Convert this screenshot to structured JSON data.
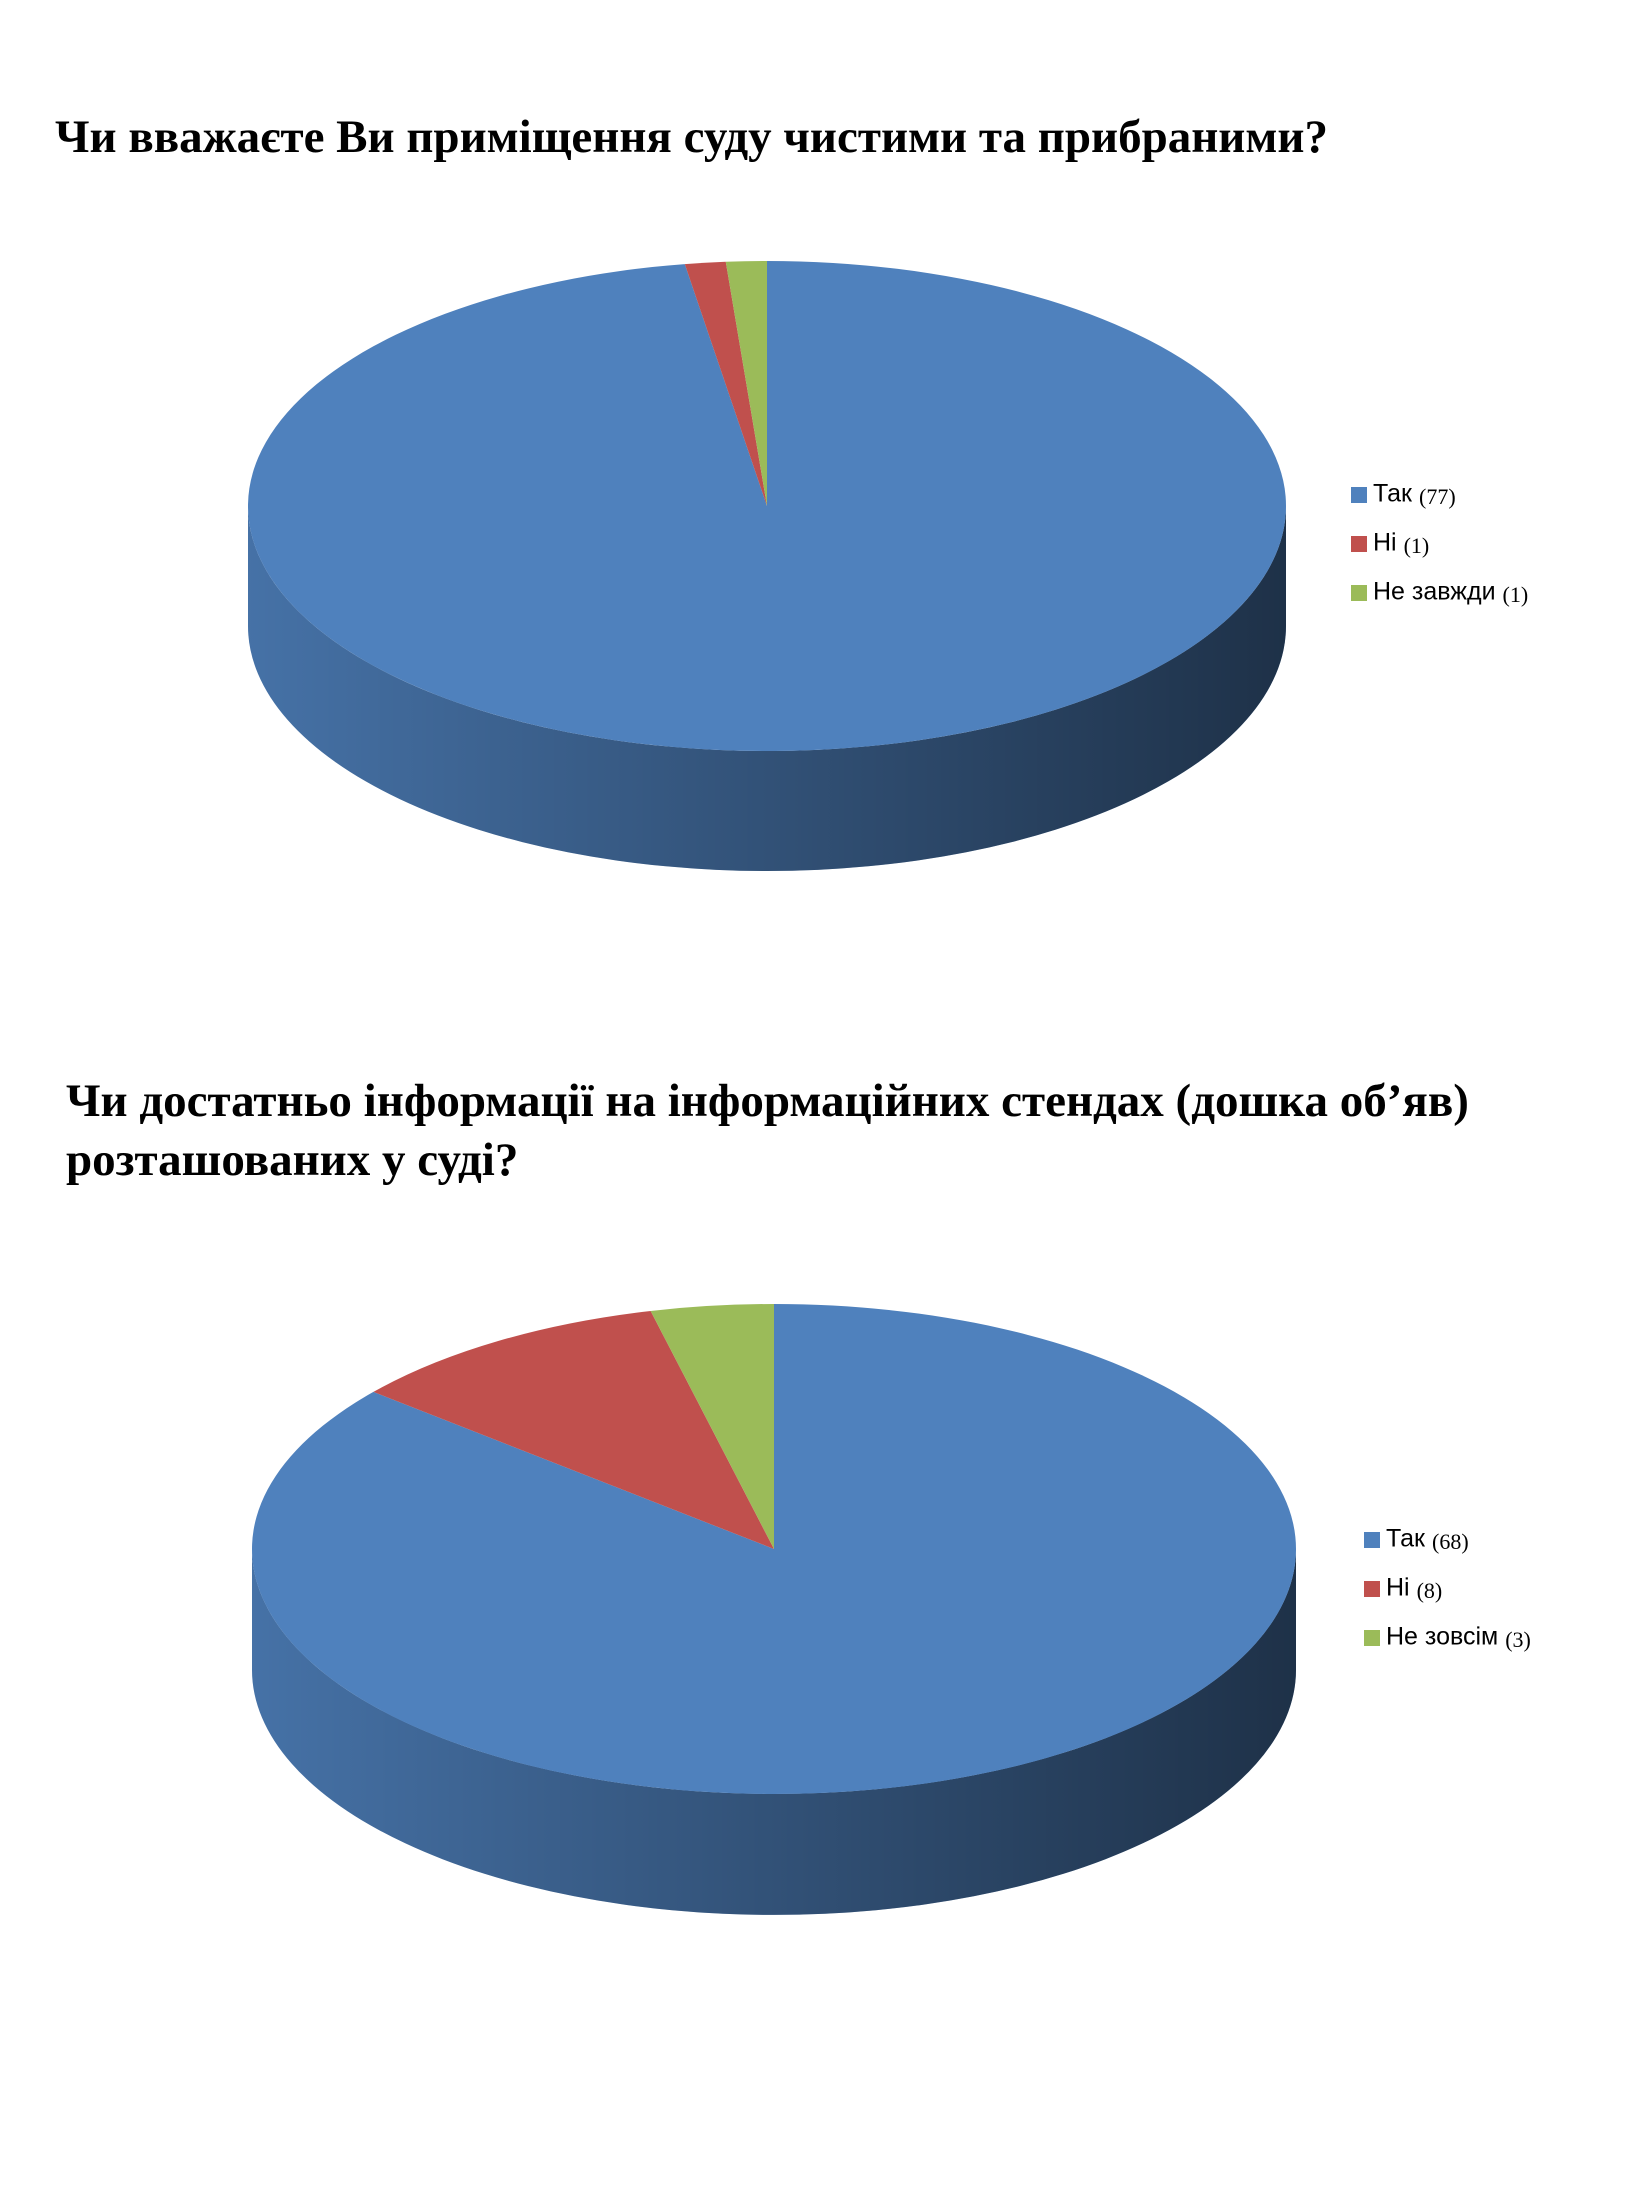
{
  "chart_data": [
    {
      "type": "pie",
      "title": "Чи вважаєте Ви приміщення суду чистими та прибраними?",
      "categories": [
        "Так",
        "Ні",
        "Не завжди"
      ],
      "values": [
        77,
        1,
        1
      ],
      "value_labels": [
        "(77)",
        "(1)",
        "(1)"
      ],
      "colors": [
        "#4f81bd",
        "#c0504d",
        "#9bbb59"
      ]
    },
    {
      "type": "pie",
      "title": "Чи достатньо інформації на інформаційних стендах (дошка об’яв) розташованих у суді?",
      "categories": [
        "Так",
        "Ні",
        "Не зовсім"
      ],
      "values": [
        68,
        8,
        3
      ],
      "value_labels": [
        "(68)",
        "(8)",
        "(3)"
      ],
      "colors": [
        "#4f81bd",
        "#c0504d",
        "#9bbb59"
      ]
    }
  ]
}
